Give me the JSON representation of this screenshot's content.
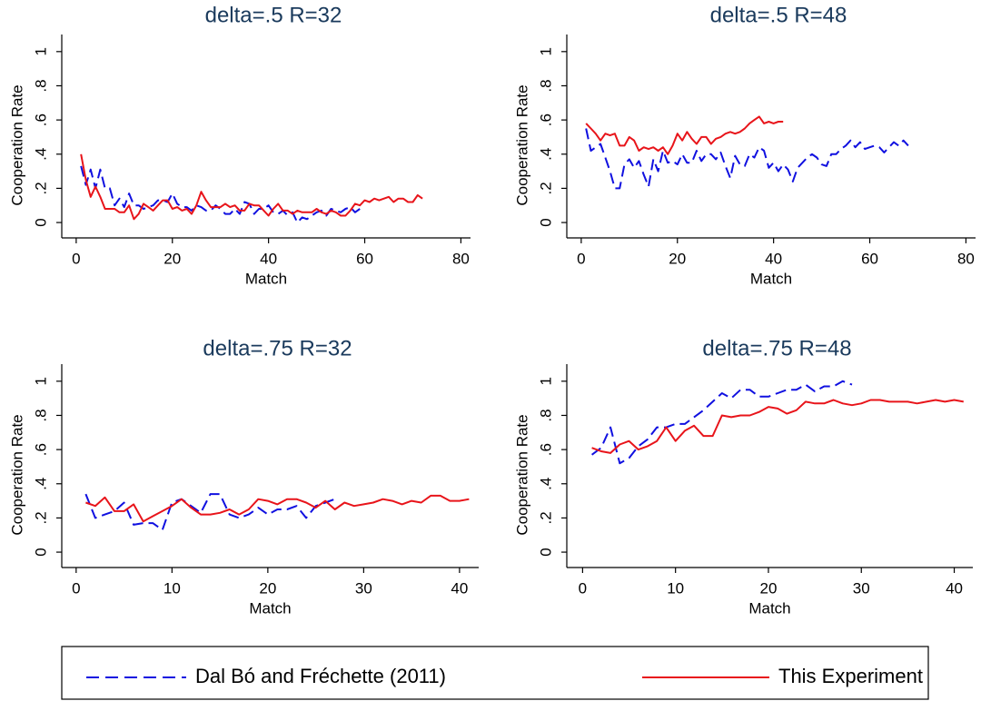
{
  "chart_data": [
    {
      "type": "line",
      "title": "delta=.5 R=32",
      "xlabel": "Match",
      "ylabel": "Cooperation Rate",
      "x": [
        1,
        2,
        3,
        4,
        5,
        6,
        7,
        8,
        9,
        10,
        11,
        12,
        13,
        14,
        15,
        16,
        17,
        18,
        19,
        20,
        21,
        22,
        23,
        24,
        25,
        26,
        27,
        28,
        29,
        30,
        31,
        32,
        33,
        34,
        35,
        36,
        37,
        38,
        39,
        40,
        41,
        42,
        43,
        44,
        45,
        46,
        47,
        48,
        49,
        50,
        51,
        52,
        53,
        54,
        55,
        56,
        57,
        58,
        59,
        60,
        61,
        62,
        63,
        64,
        65,
        66,
        67,
        68,
        69,
        70,
        71,
        72
      ],
      "series": [
        {
          "name": "Dal Bó and Fréchette (2011)",
          "color": "#1010e0",
          "line_style": "dashed",
          "values": [
            0.33,
            0.22,
            0.31,
            0.2,
            0.31,
            0.2,
            0.2,
            0.1,
            0.14,
            0.09,
            0.17,
            0.1,
            0.1,
            0.08,
            0.09,
            0.1,
            0.13,
            0.13,
            0.12,
            0.17,
            0.11,
            0.09,
            0.09,
            0.07,
            0.1,
            0.09,
            0.07,
            0.07,
            0.1,
            0.08,
            0.05,
            0.05,
            0.08,
            0.05,
            0.12,
            0.11,
            0.05,
            0.08,
            0.08,
            0.1,
            0.06,
            0.05,
            0.07,
            0.04,
            0.06,
            0.0,
            0.03,
            0.02,
            0.04,
            0.06,
            0.07,
            0.04,
            0.08,
            0.07,
            0.06,
            0.08,
            0.09,
            0.06,
            0.08,
            null,
            null,
            null,
            null,
            null,
            null,
            null,
            null,
            null,
            null,
            null,
            null,
            null
          ]
        },
        {
          "name": "This Experiment",
          "color": "#e8141a",
          "line_style": "solid",
          "values": [
            0.4,
            0.25,
            0.15,
            0.21,
            0.15,
            0.08,
            0.08,
            0.08,
            0.06,
            0.06,
            0.1,
            0.02,
            0.05,
            0.11,
            0.09,
            0.07,
            0.1,
            0.13,
            0.13,
            0.08,
            0.09,
            0.07,
            0.08,
            0.05,
            0.1,
            0.18,
            0.13,
            0.09,
            0.09,
            0.09,
            0.11,
            0.09,
            0.1,
            0.07,
            0.07,
            0.11,
            0.1,
            0.1,
            0.07,
            0.04,
            0.08,
            0.11,
            0.07,
            0.07,
            0.05,
            0.07,
            0.06,
            0.06,
            0.06,
            0.08,
            0.06,
            0.05,
            0.07,
            0.06,
            0.04,
            0.04,
            0.07,
            0.11,
            0.1,
            0.13,
            0.12,
            0.14,
            0.13,
            0.14,
            0.15,
            0.12,
            0.14,
            0.14,
            0.12,
            0.12,
            0.16,
            0.14
          ]
        }
      ],
      "xlim": [
        -3,
        82
      ],
      "xticks": [
        0,
        20,
        40,
        60,
        80
      ],
      "ylim": [
        -0.09,
        1.1
      ],
      "yticks": [
        0,
        {
          "value": 0.2,
          "label": ".2"
        },
        {
          "value": 0.4,
          "label": ".4"
        },
        {
          "value": 0.6,
          "label": ".6"
        },
        {
          "value": 0.8,
          "label": ".8"
        },
        1
      ]
    },
    {
      "type": "line",
      "title": "delta=.5 R=48",
      "xlabel": "Match",
      "ylabel": "Cooperation Rate",
      "x": [
        1,
        2,
        3,
        4,
        5,
        6,
        7,
        8,
        9,
        10,
        11,
        12,
        13,
        14,
        15,
        16,
        17,
        18,
        19,
        20,
        21,
        22,
        23,
        24,
        25,
        26,
        27,
        28,
        29,
        30,
        31,
        32,
        33,
        34,
        35,
        36,
        37,
        38,
        39,
        40,
        41,
        42,
        43,
        44,
        45,
        46,
        47,
        48,
        49,
        50,
        51,
        52,
        53,
        54,
        55,
        56,
        57,
        58,
        59,
        60,
        61,
        62,
        63,
        64,
        65,
        66,
        67,
        68
      ],
      "series": [
        {
          "color": "#1010e0",
          "line_style": "dashed",
          "values": [
            0.55,
            0.42,
            0.44,
            0.46,
            0.38,
            0.3,
            0.2,
            0.2,
            0.34,
            0.37,
            0.32,
            0.36,
            0.28,
            0.21,
            0.37,
            0.3,
            0.42,
            0.35,
            0.36,
            0.34,
            0.4,
            0.35,
            0.35,
            0.42,
            0.36,
            0.4,
            0.4,
            0.37,
            0.41,
            0.33,
            0.26,
            0.39,
            0.34,
            0.33,
            0.4,
            0.38,
            0.44,
            0.42,
            0.32,
            0.35,
            0.3,
            0.34,
            0.31,
            0.24,
            0.32,
            0.35,
            0.38,
            0.4,
            0.38,
            0.34,
            0.33,
            0.4,
            0.4,
            0.43,
            0.45,
            0.48,
            0.44,
            0.47,
            0.43,
            0.44,
            0.45,
            0.44,
            0.41,
            0.44,
            0.47,
            0.45,
            0.48,
            0.45
          ]
        },
        {
          "color": "#e8141a",
          "line_style": "solid",
          "values": [
            0.58,
            0.55,
            0.52,
            0.48,
            0.52,
            0.51,
            0.52,
            0.45,
            0.45,
            0.5,
            0.48,
            0.42,
            0.44,
            0.43,
            0.44,
            0.42,
            0.44,
            0.4,
            0.45,
            0.52,
            0.48,
            0.53,
            0.49,
            0.46,
            0.5,
            0.5,
            0.46,
            0.49,
            0.5,
            0.52,
            0.53,
            0.52,
            0.53,
            0.55,
            0.58,
            0.6,
            0.62,
            0.58,
            0.59,
            0.58,
            0.59,
            0.59,
            null,
            null,
            null,
            null,
            null,
            null,
            null,
            null,
            null,
            null,
            null,
            null,
            null,
            null,
            null,
            null,
            null,
            null,
            null,
            null,
            null,
            null,
            null,
            null,
            null,
            null
          ]
        }
      ],
      "xlim": [
        -3,
        82
      ],
      "xticks": [
        0,
        20,
        40,
        60,
        80
      ],
      "ylim": [
        -0.09,
        1.1
      ],
      "yticks": [
        0,
        {
          "value": 0.2,
          "label": ".2"
        },
        {
          "value": 0.4,
          "label": ".4"
        },
        {
          "value": 0.6,
          "label": ".6"
        },
        {
          "value": 0.8,
          "label": ".8"
        },
        1
      ]
    },
    {
      "type": "line",
      "title": "delta=.75 R=32",
      "xlabel": "Match",
      "ylabel": "Cooperation Rate",
      "x": [
        1,
        2,
        3,
        4,
        5,
        6,
        7,
        8,
        9,
        10,
        11,
        12,
        13,
        14,
        15,
        16,
        17,
        18,
        19,
        20,
        21,
        22,
        23,
        24,
        25,
        26,
        27,
        28,
        29,
        30,
        31,
        32,
        33,
        34,
        35,
        36,
        37,
        38,
        39,
        40,
        41
      ],
      "series": [
        {
          "color": "#1010e0",
          "line_style": "dashed",
          "values": [
            0.34,
            0.2,
            0.22,
            0.24,
            0.29,
            0.16,
            0.17,
            0.17,
            0.13,
            0.29,
            0.31,
            0.27,
            0.23,
            0.34,
            0.34,
            0.22,
            0.2,
            0.22,
            0.26,
            0.22,
            0.25,
            0.25,
            0.27,
            0.2,
            0.27,
            0.29,
            0.31,
            null,
            null,
            null,
            null,
            null,
            null,
            null,
            null,
            null,
            null,
            null,
            null,
            null,
            null
          ]
        },
        {
          "color": "#e8141a",
          "line_style": "solid",
          "values": [
            0.29,
            0.27,
            0.32,
            0.24,
            0.24,
            0.28,
            0.18,
            0.21,
            0.24,
            0.27,
            0.31,
            0.26,
            0.22,
            0.22,
            0.23,
            0.25,
            0.22,
            0.25,
            0.31,
            0.3,
            0.28,
            0.31,
            0.31,
            0.29,
            0.26,
            0.3,
            0.25,
            0.29,
            0.27,
            0.28,
            0.29,
            0.31,
            0.3,
            0.28,
            0.3,
            0.29,
            0.33,
            0.33,
            0.3,
            0.3,
            0.31
          ]
        }
      ],
      "xlim": [
        -1.5,
        42
      ],
      "xticks": [
        0,
        10,
        20,
        30,
        40
      ],
      "ylim": [
        -0.09,
        1.1
      ],
      "yticks": [
        0,
        {
          "value": 0.2,
          "label": ".2"
        },
        {
          "value": 0.4,
          "label": ".4"
        },
        {
          "value": 0.6,
          "label": ".6"
        },
        {
          "value": 0.8,
          "label": ".8"
        },
        1
      ]
    },
    {
      "type": "line",
      "title": "delta=.75 R=48",
      "xlabel": "Match",
      "ylabel": "Cooperation Rate",
      "x": [
        1,
        2,
        3,
        4,
        5,
        6,
        7,
        8,
        9,
        10,
        11,
        12,
        13,
        14,
        15,
        16,
        17,
        18,
        19,
        20,
        21,
        22,
        23,
        24,
        25,
        26,
        27,
        28,
        29,
        30,
        31,
        32,
        33,
        34,
        35,
        36,
        37,
        38,
        39,
        40,
        41
      ],
      "series": [
        {
          "color": "#1010e0",
          "line_style": "dashed",
          "values": [
            0.57,
            0.61,
            0.73,
            0.52,
            0.55,
            0.62,
            0.66,
            0.73,
            0.73,
            0.75,
            0.75,
            0.79,
            0.83,
            0.88,
            0.93,
            0.9,
            0.95,
            0.95,
            0.91,
            0.91,
            0.93,
            0.95,
            0.95,
            0.98,
            0.94,
            0.97,
            0.97,
            1.0,
            0.98,
            null,
            null,
            null,
            null,
            null,
            null,
            null,
            null,
            null,
            null,
            null,
            null
          ]
        },
        {
          "color": "#e8141a",
          "line_style": "solid",
          "values": [
            0.61,
            0.59,
            0.58,
            0.63,
            0.65,
            0.6,
            0.62,
            0.65,
            0.73,
            0.65,
            0.71,
            0.74,
            0.68,
            0.68,
            0.8,
            0.79,
            0.8,
            0.8,
            0.82,
            0.85,
            0.84,
            0.81,
            0.83,
            0.88,
            0.87,
            0.87,
            0.89,
            0.87,
            0.86,
            0.87,
            0.89,
            0.89,
            0.88,
            0.88,
            0.88,
            0.87,
            0.88,
            0.89,
            0.88,
            0.89,
            0.88
          ]
        }
      ],
      "xlim": [
        -1.7,
        42
      ],
      "xticks": [
        0,
        10,
        20,
        30,
        40
      ],
      "ylim": [
        -0.09,
        1.1
      ],
      "yticks": [
        0,
        {
          "value": 0.2,
          "label": ".2"
        },
        {
          "value": 0.4,
          "label": ".4"
        },
        {
          "value": 0.6,
          "label": ".6"
        },
        {
          "value": 0.8,
          "label": ".8"
        },
        1
      ]
    }
  ]
}
